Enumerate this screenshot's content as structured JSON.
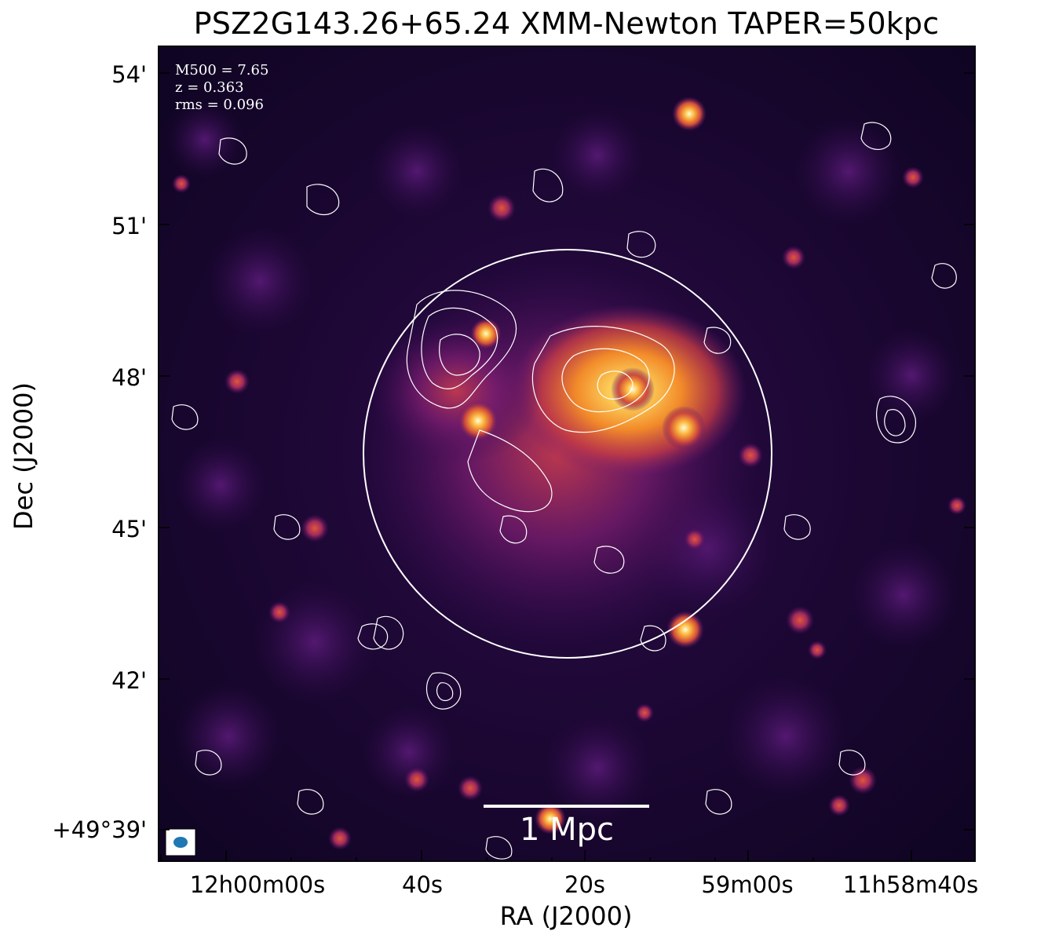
{
  "figure": {
    "title": "PSZ2G143.26+65.24 XMM-Newton TAPER=50kpc",
    "annotations": [
      "M500 = 7.65",
      "z = 0.363",
      "rms = 0.096"
    ],
    "scalebar_label": "1 Mpc",
    "xlabel": "RA (J2000)",
    "ylabel": "Dec (J2000)",
    "xticks": [
      "12h00m00s",
      "40s",
      "20s",
      "59m00s",
      "11h58m40s"
    ],
    "yticks": [
      "54'",
      "51'",
      "48'",
      "45'",
      "42'",
      "+49°39'"
    ],
    "beam_color": "#1f77b4",
    "colormap": "inferno",
    "contour_color": "#ffffff",
    "circle_color": "#ffffff"
  }
}
